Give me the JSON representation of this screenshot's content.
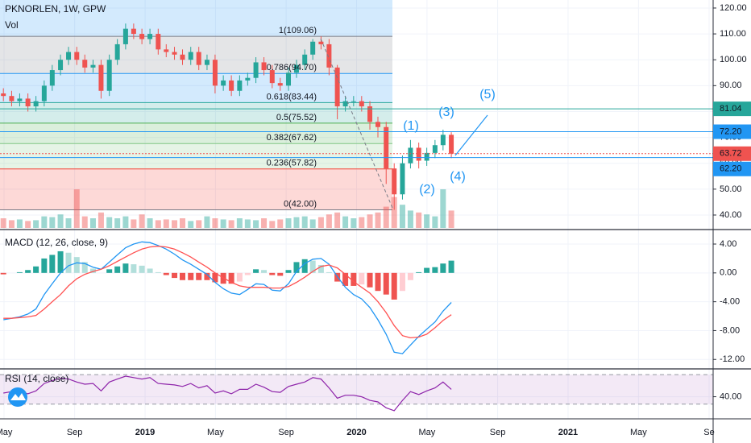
{
  "header": {
    "symbol": "PKNORLEN, 1W, GPW",
    "volume": "Vol"
  },
  "chart_data": [
    {
      "type": "candlestick",
      "x": [
        2018.33,
        2018.369,
        2018.407,
        2018.446,
        2018.484,
        2018.523,
        2018.561,
        2018.6,
        2018.638,
        2018.677,
        2018.715,
        2018.754,
        2018.792,
        2018.831,
        2018.869,
        2018.908,
        2018.946,
        2018.985,
        2019.023,
        2019.062,
        2019.1,
        2019.139,
        2019.177,
        2019.216,
        2019.254,
        2019.293,
        2019.331,
        2019.37,
        2019.408,
        2019.447,
        2019.485,
        2019.524,
        2019.562,
        2019.601,
        2019.639,
        2019.678,
        2019.716,
        2019.755,
        2019.793,
        2019.832,
        2019.87,
        2019.909,
        2019.947,
        2019.986,
        2020.024,
        2020.063,
        2020.101,
        2020.14,
        2020.178,
        2020.217,
        2020.255,
        2020.294,
        2020.332,
        2020.371,
        2020.409,
        2020.448
      ],
      "open": [
        87,
        86,
        84,
        85,
        82,
        84,
        90,
        96,
        100,
        103,
        100,
        97,
        98,
        88,
        100,
        106,
        112,
        110,
        108,
        110,
        104,
        103,
        102,
        100,
        103,
        98,
        100,
        90,
        92,
        88,
        92,
        93,
        99,
        96,
        91,
        90,
        95,
        98,
        102,
        107,
        106,
        97,
        82,
        84,
        84,
        82,
        76,
        74,
        58,
        48,
        60,
        66,
        61,
        64,
        67,
        71
      ],
      "high": [
        89,
        88,
        87,
        87,
        86,
        92,
        98,
        102,
        105,
        105,
        102,
        100,
        100,
        102,
        108,
        114,
        114,
        112,
        112,
        112,
        106,
        105,
        104,
        105,
        105,
        102,
        102,
        94,
        94,
        94,
        95,
        101,
        101,
        98,
        93,
        97,
        100,
        104,
        108,
        109.06,
        108,
        98,
        86,
        86,
        86,
        84,
        78,
        76,
        60,
        63,
        69,
        68,
        66,
        69,
        73,
        72
      ],
      "low": [
        84,
        82,
        82,
        80,
        80,
        82,
        88,
        94,
        98,
        98,
        95,
        95,
        85,
        86,
        98,
        104,
        108,
        106,
        106,
        102,
        101,
        100,
        98,
        98,
        96,
        96,
        87,
        88,
        86,
        86,
        90,
        91,
        94,
        89,
        88,
        88,
        93,
        96,
        100,
        104,
        94,
        77,
        80,
        82,
        80,
        73,
        70,
        52,
        42,
        46,
        58,
        58,
        59,
        62,
        65,
        62
      ],
      "close": [
        86,
        84,
        85,
        82,
        84,
        90,
        96,
        100,
        103,
        100,
        97,
        98,
        88,
        100,
        106,
        112,
        110,
        108,
        110,
        104,
        103,
        102,
        100,
        103,
        98,
        100,
        90,
        92,
        88,
        92,
        93,
        99,
        96,
        91,
        90,
        95,
        98,
        102,
        107,
        106,
        97,
        82,
        84,
        84,
        82,
        76,
        74,
        58,
        48,
        60,
        66,
        61,
        64,
        67,
        71,
        63.72
      ],
      "volume": [
        25,
        20,
        22,
        18,
        20,
        30,
        28,
        35,
        25,
        100,
        30,
        25,
        40,
        28,
        25,
        30,
        22,
        35,
        25,
        20,
        22,
        20,
        25,
        18,
        20,
        30,
        25,
        22,
        20,
        25,
        22,
        20,
        25,
        18,
        22,
        25,
        28,
        30,
        22,
        28,
        35,
        40,
        30,
        25,
        28,
        35,
        40,
        55,
        80,
        60,
        45,
        40,
        35,
        30,
        100,
        45
      ],
      "up_color": "#26a69a",
      "down_color": "#ef5350",
      "xlim": [
        2018.314,
        2021.686
      ],
      "xticks": [
        {
          "value": 2018.333,
          "label": "May"
        },
        {
          "value": 2018.667,
          "label": "Sep"
        },
        2019,
        {
          "value": 2019.333,
          "label": "May"
        },
        {
          "value": 2019.667,
          "label": "Sep"
        },
        2020,
        {
          "value": 2020.333,
          "label": "May"
        },
        {
          "value": 2020.667,
          "label": "Sep"
        },
        2021,
        {
          "value": 2021.333,
          "label": "May"
        },
        {
          "value": 2021.667,
          "label": "Se"
        }
      ],
      "ylim": [
        34.7,
        123.1
      ],
      "yticks": [
        {
          "value": 40,
          "label": "40.00"
        },
        {
          "value": 50,
          "label": "50.00"
        },
        {
          "value": 60,
          "label": "60.00"
        },
        {
          "value": 70,
          "label": "70.00"
        },
        {
          "value": 80,
          "label": "80.00"
        },
        {
          "value": 90,
          "label": "90.00"
        },
        {
          "value": 100,
          "label": "100.00"
        },
        {
          "value": 110,
          "label": "110.00"
        },
        {
          "value": 120,
          "label": "120.00"
        }
      ],
      "fib_levels": [
        {
          "value": 109.06,
          "label": "1(109.06)",
          "color": "#787b86"
        },
        {
          "value": 94.7,
          "label": "0.786(94.70)",
          "color": "#2196f3"
        },
        {
          "value": 83.44,
          "label": "0.618(83.44)",
          "color": "#26a69a"
        },
        {
          "value": 75.52,
          "label": "0.5(75.52)",
          "color": "#4caf50"
        },
        {
          "value": 67.62,
          "label": "0.382(67.62)",
          "color": "#81c784"
        },
        {
          "value": 57.82,
          "label": "0.236(57.82)",
          "color": "#f44336"
        },
        {
          "value": 42.0,
          "label": "0(42.00)",
          "color": "#787b86"
        }
      ],
      "levels": [
        {
          "value": 81.04,
          "label": "81.04",
          "color": "#26a69a"
        },
        {
          "value": 72.2,
          "label": "72.20",
          "color": "#2196f3"
        },
        {
          "value": 63.72,
          "label": "63.72",
          "color": "#ef5350"
        },
        {
          "value": 62.2,
          "label": "62.20",
          "color": "#2196f3"
        }
      ],
      "annotations": [
        "(1)",
        "(2)",
        "(3)",
        "(4)",
        "(5)"
      ]
    },
    {
      "type": "macd",
      "title": "MACD (12, 26, close, 9)",
      "x": [
        2018.33,
        2018.369,
        2018.407,
        2018.446,
        2018.484,
        2018.523,
        2018.561,
        2018.6,
        2018.638,
        2018.677,
        2018.715,
        2018.754,
        2018.792,
        2018.831,
        2018.869,
        2018.908,
        2018.946,
        2018.985,
        2019.023,
        2019.062,
        2019.1,
        2019.139,
        2019.177,
        2019.216,
        2019.254,
        2019.293,
        2019.331,
        2019.37,
        2019.408,
        2019.447,
        2019.485,
        2019.524,
        2019.562,
        2019.601,
        2019.639,
        2019.678,
        2019.716,
        2019.755,
        2019.793,
        2019.832,
        2019.87,
        2019.909,
        2019.947,
        2019.986,
        2020.024,
        2020.063,
        2020.101,
        2020.14,
        2020.178,
        2020.217,
        2020.255,
        2020.294,
        2020.332,
        2020.371,
        2020.409,
        2020.448
      ],
      "macd": [
        -6.5,
        -6.3,
        -6.1,
        -5.7,
        -5.0,
        -3.0,
        -1.5,
        0,
        1.0,
        1.4,
        1.3,
        0.8,
        0.5,
        1.5,
        2.5,
        3.5,
        4.0,
        4.3,
        4.2,
        3.8,
        3.3,
        2.6,
        1.8,
        1.2,
        0.5,
        -0.2,
        -1.3,
        -2.2,
        -2.8,
        -3.0,
        -2.3,
        -1.5,
        -1.6,
        -2.4,
        -2.5,
        -1.5,
        0.2,
        1.3,
        1.9,
        2.0,
        1.2,
        -0.5,
        -2.0,
        -3.0,
        -3.6,
        -4.8,
        -6.5,
        -8.5,
        -11.0,
        -11.2,
        -10.0,
        -8.8,
        -7.8,
        -6.8,
        -5.3,
        -4.1
      ],
      "signal": [
        -6.3,
        -6.3,
        -6.2,
        -6.1,
        -5.9,
        -5.0,
        -4.0,
        -3.0,
        -1.8,
        -0.8,
        -0.2,
        0.2,
        0.5,
        1.0,
        1.6,
        2.2,
        2.8,
        3.3,
        3.6,
        3.7,
        3.6,
        3.3,
        2.8,
        2.2,
        1.5,
        0.8,
        0,
        -0.7,
        -1.3,
        -1.8,
        -2.0,
        -2.0,
        -2.0,
        -2.1,
        -2.1,
        -1.9,
        -1.3,
        -0.6,
        0.2,
        0.9,
        1.1,
        0.7,
        -0.2,
        -1.2,
        -2.0,
        -2.8,
        -4.0,
        -5.5,
        -7.3,
        -8.7,
        -9.0,
        -8.9,
        -8.5,
        -7.6,
        -6.6,
        -5.8
      ],
      "histogram": [
        -0.2,
        0,
        0.1,
        0.4,
        0.9,
        2.0,
        2.5,
        3.0,
        2.8,
        2.2,
        1.5,
        0.6,
        0,
        0.5,
        0.9,
        1.3,
        1.2,
        1.0,
        0.6,
        0.1,
        -0.3,
        -0.7,
        -1.0,
        -1.0,
        -1.0,
        -1.0,
        -1.3,
        -1.5,
        -1.5,
        -1.2,
        -0.3,
        0.5,
        0.4,
        -0.3,
        -0.4,
        0.4,
        1.5,
        1.9,
        1.7,
        1.1,
        0.1,
        -1.2,
        -1.8,
        -1.8,
        -1.6,
        -2.0,
        -2.5,
        -3.0,
        -3.7,
        -2.5,
        -1.0,
        0.1,
        0.7,
        0.8,
        1.3,
        1.7
      ],
      "macd_color": "#2196f3",
      "signal_color": "#ff5252",
      "ylim": [
        -13.2,
        5.9
      ],
      "yticks": [
        {
          "value": 4,
          "label": "4.00"
        },
        {
          "value": 0,
          "label": "0.00"
        },
        {
          "value": -4,
          "label": "-4.00"
        },
        {
          "value": -8,
          "label": "-8.00"
        },
        {
          "value": -12,
          "label": "-12.00"
        }
      ]
    },
    {
      "type": "rsi",
      "title": "RSI (14, close)",
      "x": [
        2018.33,
        2018.369,
        2018.407,
        2018.446,
        2018.484,
        2018.523,
        2018.561,
        2018.6,
        2018.638,
        2018.677,
        2018.715,
        2018.754,
        2018.792,
        2018.831,
        2018.869,
        2018.908,
        2018.946,
        2018.985,
        2019.023,
        2019.062,
        2019.1,
        2019.139,
        2019.177,
        2019.216,
        2019.254,
        2019.293,
        2019.331,
        2019.37,
        2019.408,
        2019.447,
        2019.485,
        2019.524,
        2019.562,
        2019.601,
        2019.639,
        2019.678,
        2019.716,
        2019.755,
        2019.793,
        2019.832,
        2019.87,
        2019.909,
        2019.947,
        2019.986,
        2020.024,
        2020.063,
        2020.101,
        2020.14,
        2020.178,
        2020.217,
        2020.255,
        2020.294,
        2020.332,
        2020.371,
        2020.409,
        2020.448
      ],
      "values": [
        45,
        47,
        46,
        44,
        48,
        58,
        62,
        65,
        64,
        60,
        57,
        58,
        48,
        60,
        64,
        68,
        66,
        64,
        66,
        58,
        57,
        56,
        54,
        58,
        52,
        55,
        45,
        48,
        44,
        50,
        50,
        57,
        53,
        47,
        46,
        54,
        57,
        60,
        66,
        64,
        52,
        38,
        42,
        42,
        40,
        35,
        33,
        25,
        21,
        35,
        47,
        43,
        48,
        52,
        60,
        50
      ],
      "color": "#8e24aa",
      "band": [
        30,
        70
      ],
      "ylim": [
        11.1,
        76.7
      ],
      "yticks": [
        {
          "value": 40,
          "label": "40.00"
        }
      ]
    }
  ]
}
